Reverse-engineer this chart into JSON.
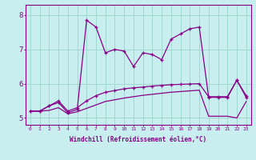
{
  "xlabel": "Windchill (Refroidissement éolien,°C)",
  "background_color": "#c8eef0",
  "grid_color": "#a0d8d0",
  "line_color": "#880088",
  "x": [
    0,
    1,
    2,
    3,
    4,
    5,
    6,
    7,
    8,
    9,
    10,
    11,
    12,
    13,
    14,
    15,
    16,
    17,
    18,
    19,
    20,
    21,
    22,
    23
  ],
  "series1": [
    5.2,
    5.2,
    5.35,
    5.45,
    5.15,
    5.25,
    7.85,
    7.65,
    6.9,
    7.0,
    6.95,
    6.5,
    6.9,
    6.85,
    6.7,
    7.3,
    7.45,
    7.6,
    7.65,
    5.6,
    5.6,
    5.6,
    6.1,
    5.6
  ],
  "series2": [
    5.2,
    5.2,
    5.35,
    5.5,
    5.2,
    5.3,
    5.5,
    5.65,
    5.75,
    5.8,
    5.85,
    5.88,
    5.9,
    5.93,
    5.95,
    5.97,
    5.98,
    5.99,
    6.0,
    5.62,
    5.62,
    5.62,
    6.1,
    5.65
  ],
  "series3": [
    5.2,
    5.2,
    5.22,
    5.3,
    5.12,
    5.18,
    5.28,
    5.38,
    5.48,
    5.53,
    5.58,
    5.62,
    5.66,
    5.69,
    5.72,
    5.75,
    5.77,
    5.79,
    5.81,
    5.05,
    5.05,
    5.05,
    5.0,
    5.48
  ],
  "ylim": [
    4.8,
    8.3
  ],
  "yticks": [
    5,
    6,
    7,
    8
  ],
  "xlim": [
    -0.5,
    23.5
  ]
}
